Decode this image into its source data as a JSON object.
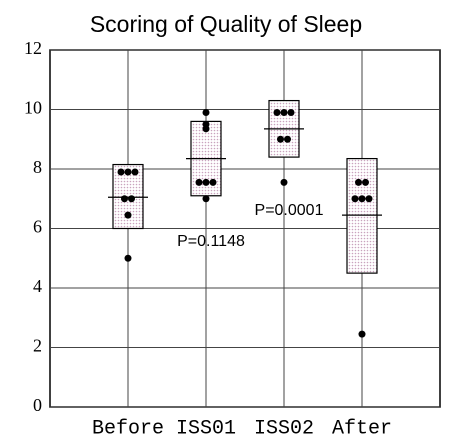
{
  "chart_data": {
    "type": "box-dot",
    "title": "Scoring of Quality of Sleep",
    "categories": [
      "Before",
      "ISS01",
      "ISS02",
      "After"
    ],
    "series": [
      {
        "box_low": 6.0,
        "box_high": 8.15,
        "mean": 7.05,
        "points": [
          7.9,
          7.9,
          7.9,
          7.0,
          7.0,
          6.45,
          5.0
        ]
      },
      {
        "box_low": 7.1,
        "box_high": 9.6,
        "mean": 8.35,
        "points": [
          9.9,
          9.5,
          9.35,
          7.55,
          7.55,
          7.55,
          7.0
        ]
      },
      {
        "box_low": 8.4,
        "box_high": 10.3,
        "mean": 9.35,
        "points": [
          9.9,
          9.9,
          9.9,
          9.0,
          9.0,
          7.55
        ]
      },
      {
        "box_low": 4.5,
        "box_high": 8.35,
        "mean": 6.45,
        "points": [
          7.55,
          7.55,
          7.0,
          7.0,
          7.0,
          2.45
        ]
      }
    ],
    "annotations": [
      {
        "text": "P=0.1148",
        "category": 1,
        "y": 5.55
      },
      {
        "text": "P=0.0001",
        "category": 2,
        "y": 6.6
      }
    ],
    "color": "#c9a3bd",
    "ylim": [
      0,
      12
    ],
    "yticks": [
      0,
      2,
      4,
      6,
      8,
      10,
      12
    ],
    "grid": true
  }
}
